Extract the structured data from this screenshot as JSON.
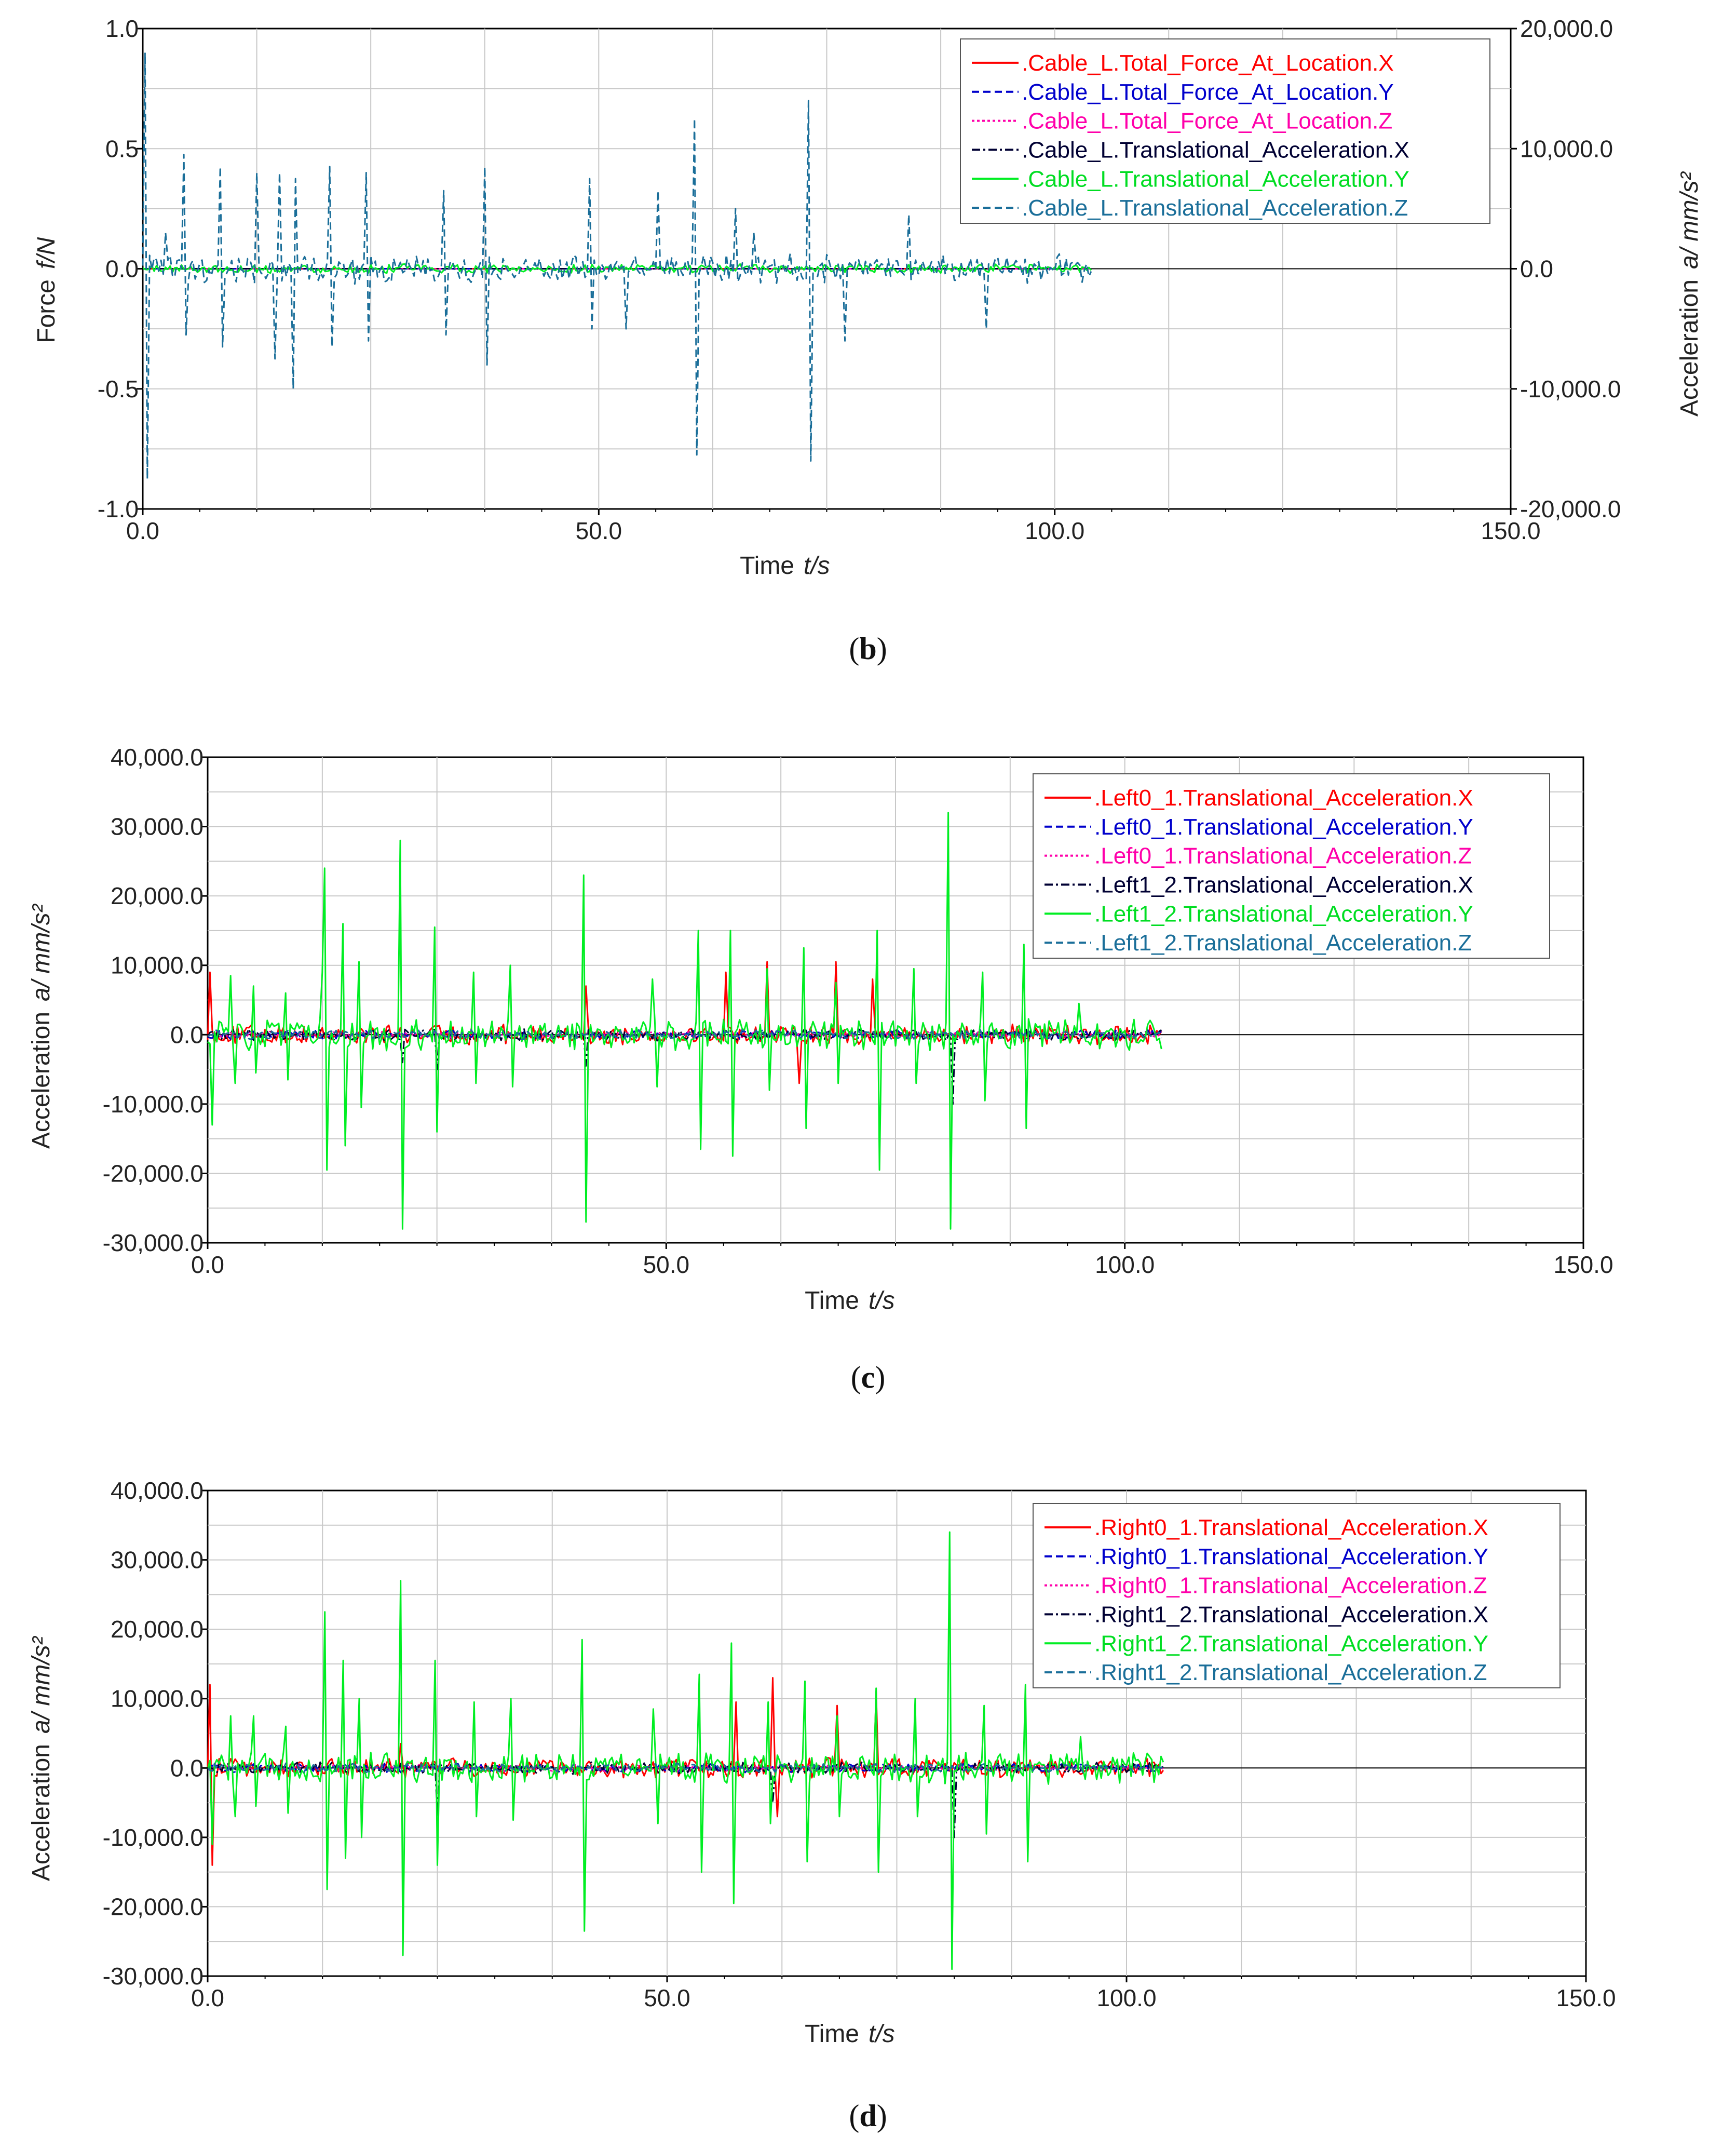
{
  "chart_data": [
    {
      "type": "line",
      "panel": "b",
      "caption": "b",
      "xlabel": "Time",
      "xunit": "t/s",
      "ylabel_left": "Force",
      "yunit_left": "f/N",
      "ylabel_right": "Acceleration",
      "yunit_right": "a/ mm/s²",
      "xlim": [
        0,
        150
      ],
      "ylim_left": [
        -1.0,
        1.0
      ],
      "ylim_right": [
        -20000,
        20000
      ],
      "xticks": [
        "0.0",
        "50.0",
        "100.0",
        "150.0"
      ],
      "yticks_left": [
        "1.0",
        "0.5",
        "0.0",
        "-0.5",
        "-1.0"
      ],
      "yticks_right": [
        "20,000.0",
        "10,000.0",
        "0.0",
        "-10,000.0",
        "-20,000.0"
      ],
      "grid": true,
      "legend_position": "top-right",
      "data_end_time": 104,
      "series": [
        {
          "name": ".Cable_L.Total_Force_At_Location.X",
          "color": "#ff0000",
          "dash": "solid",
          "axis": "left",
          "noise": 0.0,
          "spikes": []
        },
        {
          "name": ".Cable_L.Total_Force_At_Location.Y",
          "color": "#0000cc",
          "dash": "dashed",
          "axis": "left",
          "noise": 0.0,
          "spikes": []
        },
        {
          "name": ".Cable_L.Total_Force_At_Location.Z",
          "color": "#ff00aa",
          "dash": "dotted",
          "axis": "left",
          "noise": 0.0,
          "spikes": []
        },
        {
          "name": ".Cable_L.Translational_Acceleration.X",
          "color": "#000033",
          "dash": "dashdot",
          "axis": "right",
          "noise": 0,
          "spikes": []
        },
        {
          "name": ".Cable_L.Translational_Acceleration.Y",
          "color": "#00ee22",
          "dash": "solid",
          "axis": "right",
          "noise": 400,
          "spikes": []
        },
        {
          "name": ".Cable_L.Translational_Acceleration.Z",
          "color": "#1a6e99",
          "dash": "dashed",
          "axis": "right",
          "noise": 1300,
          "spikes": [
            [
              0.3,
              18000
            ],
            [
              0.6,
              -17500
            ],
            [
              2.5,
              3000
            ],
            [
              4.5,
              9500
            ],
            [
              4.8,
              -5500
            ],
            [
              8.5,
              8500
            ],
            [
              8.8,
              -6500
            ],
            [
              12.5,
              8000
            ],
            [
              14.5,
              -7500
            ],
            [
              15,
              8000
            ],
            [
              16.5,
              -10000
            ],
            [
              16.8,
              7500
            ],
            [
              20.5,
              8500
            ],
            [
              20.8,
              -6500
            ],
            [
              24.5,
              8000
            ],
            [
              24.8,
              -6000
            ],
            [
              33,
              6500
            ],
            [
              33.3,
              -5500
            ],
            [
              37.5,
              8500
            ],
            [
              37.8,
              -8000
            ],
            [
              49,
              7500
            ],
            [
              49.3,
              -5000
            ],
            [
              53,
              -5000
            ],
            [
              56.5,
              6500
            ],
            [
              60.5,
              12500
            ],
            [
              60.8,
              -15500
            ],
            [
              65,
              5000
            ],
            [
              67,
              3000
            ],
            [
              73,
              14000
            ],
            [
              73.3,
              -16000
            ],
            [
              77,
              -6000
            ],
            [
              84,
              4500
            ],
            [
              92.5,
              -5000
            ]
          ]
        }
      ]
    },
    {
      "type": "line",
      "panel": "c",
      "caption": "c",
      "xlabel": "Time",
      "xunit": "t/s",
      "ylabel_left": "Acceleration",
      "yunit_left": "a/ mm/s²",
      "xlim": [
        0,
        150
      ],
      "ylim_left": [
        -30000,
        40000
      ],
      "xticks": [
        "0.0",
        "50.0",
        "100.0",
        "150.0"
      ],
      "yticks_left": [
        "40,000.0",
        "30,000.0",
        "20,000.0",
        "10,000.0",
        "0.0",
        "-10,000.0",
        "-20,000.0",
        "-30,000.0"
      ],
      "grid": true,
      "legend_position": "top-right",
      "data_end_time": 104,
      "series": [
        {
          "name": ".Left0_1.Translational_Acceleration.X",
          "color": "#ff0000",
          "dash": "solid",
          "axis": "left",
          "noise": 1500,
          "spikes": [
            [
              0.2,
              9000
            ],
            [
              41.2,
              7000
            ],
            [
              56.5,
              9000
            ],
            [
              61,
              10500
            ],
            [
              64.5,
              -7000
            ],
            [
              68.5,
              10500
            ],
            [
              72.5,
              8000
            ]
          ]
        },
        {
          "name": ".Left0_1.Translational_Acceleration.Y",
          "color": "#0000cc",
          "dash": "dashed",
          "axis": "left",
          "noise": 700,
          "spikes": []
        },
        {
          "name": ".Left0_1.Translational_Acceleration.Z",
          "color": "#ff00aa",
          "dash": "dotted",
          "axis": "left",
          "noise": 500,
          "spikes": []
        },
        {
          "name": ".Left1_2.Translational_Acceleration.X",
          "color": "#000033",
          "dash": "dashdot",
          "axis": "left",
          "noise": 900,
          "spikes": [
            [
              21.3,
              -4000
            ],
            [
              25,
              -5000
            ],
            [
              41.2,
              -4500
            ],
            [
              81.3,
              -10000
            ]
          ]
        },
        {
          "name": ".Left1_2.Translational_Acceleration.Y",
          "color": "#00ee22",
          "dash": "solid",
          "axis": "left",
          "noise": 2400,
          "spikes": [
            [
              0.4,
              14000
            ],
            [
              0.5,
              -13000
            ],
            [
              2.5,
              8500
            ],
            [
              3,
              -7000
            ],
            [
              5,
              7000
            ],
            [
              5.3,
              -5500
            ],
            [
              8.5,
              6000
            ],
            [
              8.8,
              -6500
            ],
            [
              12.5,
              9000
            ],
            [
              12.8,
              -7500
            ],
            [
              12.8,
              24000
            ],
            [
              13,
              -19500
            ],
            [
              14.8,
              16000
            ],
            [
              15.1,
              -16000
            ],
            [
              16.5,
              10500
            ],
            [
              16.8,
              -10500
            ],
            [
              21,
              28000
            ],
            [
              21.3,
              -28000
            ],
            [
              24.8,
              15500
            ],
            [
              25.1,
              -14000
            ],
            [
              29,
              9000
            ],
            [
              29.3,
              -7000
            ],
            [
              33,
              10000
            ],
            [
              33.3,
              -7500
            ],
            [
              41,
              23000
            ],
            [
              41.3,
              -27000
            ],
            [
              48.5,
              8000
            ],
            [
              49,
              -7500
            ],
            [
              53.5,
              15000
            ],
            [
              53.8,
              -16500
            ],
            [
              57,
              15000
            ],
            [
              57.3,
              -17500
            ],
            [
              61,
              9500
            ],
            [
              61.3,
              -8000
            ],
            [
              65,
              12500
            ],
            [
              65.3,
              -13500
            ],
            [
              68.5,
              7500
            ],
            [
              68.8,
              -7000
            ],
            [
              73,
              15000
            ],
            [
              73.3,
              -19500
            ],
            [
              77,
              9500
            ],
            [
              77.3,
              -7000
            ],
            [
              80.8,
              32000
            ],
            [
              81.1,
              -28000
            ],
            [
              84.5,
              9000
            ],
            [
              84.8,
              -9500
            ],
            [
              89,
              13000
            ],
            [
              89.3,
              -13500
            ],
            [
              95,
              4500
            ]
          ]
        },
        {
          "name": ".Left1_2.Translational_Acceleration.Z",
          "color": "#1a6e99",
          "dash": "dashed",
          "axis": "left",
          "noise": 700,
          "spikes": []
        }
      ]
    },
    {
      "type": "line",
      "panel": "d",
      "caption": "d",
      "xlabel": "Time",
      "xunit": "t/s",
      "ylabel_left": "Acceleration",
      "yunit_left": "a/ mm/s²",
      "xlim": [
        0,
        150
      ],
      "ylim_left": [
        -30000,
        40000
      ],
      "xticks": [
        "0.0",
        "50.0",
        "100.0",
        "150.0"
      ],
      "yticks_left": [
        "40,000.0",
        "30,000.0",
        "20,000.0",
        "10,000.0",
        "0.0",
        "-10,000.0",
        "-20,000.0",
        "-30,000.0"
      ],
      "grid": true,
      "legend_position": "top-right",
      "data_end_time": 104,
      "series": [
        {
          "name": ".Right0_1.Translational_Acceleration.X",
          "color": "#ff0000",
          "dash": "solid",
          "axis": "left",
          "noise": 1500,
          "spikes": [
            [
              0.3,
              12000
            ],
            [
              0.5,
              -14000
            ],
            [
              21,
              3500
            ],
            [
              57.5,
              9500
            ],
            [
              61.5,
              13000
            ],
            [
              62,
              -7000
            ],
            [
              68.5,
              9000
            ],
            [
              72.8,
              11000
            ]
          ]
        },
        {
          "name": ".Right0_1.Translational_Acceleration.Y",
          "color": "#0000cc",
          "dash": "dashed",
          "axis": "left",
          "noise": 700,
          "spikes": []
        },
        {
          "name": ".Right0_1.Translational_Acceleration.Z",
          "color": "#ff00aa",
          "dash": "dotted",
          "axis": "left",
          "noise": 500,
          "spikes": []
        },
        {
          "name": ".Right1_2.Translational_Acceleration.X",
          "color": "#000033",
          "dash": "dashdot",
          "axis": "left",
          "noise": 900,
          "spikes": [
            [
              25,
              -7000
            ],
            [
              61.5,
              -5000
            ],
            [
              81.3,
              -10000
            ]
          ]
        },
        {
          "name": ".Right1_2.Translational_Acceleration.Y",
          "color": "#00ee22",
          "dash": "solid",
          "axis": "left",
          "noise": 2400,
          "spikes": [
            [
              0.4,
              11000
            ],
            [
              0.6,
              -11000
            ],
            [
              2.5,
              7500
            ],
            [
              3,
              -7000
            ],
            [
              5,
              7500
            ],
            [
              5.3,
              -5500
            ],
            [
              8.5,
              6000
            ],
            [
              8.8,
              -6500
            ],
            [
              12.8,
              22500
            ],
            [
              13.1,
              -17500
            ],
            [
              14.8,
              15500
            ],
            [
              15.1,
              -13000
            ],
            [
              16.5,
              10000
            ],
            [
              16.8,
              -10000
            ],
            [
              21,
              27000
            ],
            [
              21.3,
              -27000
            ],
            [
              24.8,
              15500
            ],
            [
              25.1,
              -14000
            ],
            [
              29,
              9500
            ],
            [
              29.3,
              -7000
            ],
            [
              33,
              10000
            ],
            [
              33.3,
              -7500
            ],
            [
              40.8,
              18500
            ],
            [
              41.1,
              -23500
            ],
            [
              48.5,
              8500
            ],
            [
              49,
              -8000
            ],
            [
              53.5,
              13500
            ],
            [
              53.8,
              -15000
            ],
            [
              57,
              18000
            ],
            [
              57.3,
              -19500
            ],
            [
              61,
              9500
            ],
            [
              61.3,
              -8000
            ],
            [
              65,
              12500
            ],
            [
              65.3,
              -13500
            ],
            [
              68.5,
              7500
            ],
            [
              68.8,
              -7000
            ],
            [
              72.8,
              11500
            ],
            [
              73.1,
              -15000
            ],
            [
              77,
              10000
            ],
            [
              77.3,
              -7000
            ],
            [
              80.8,
              34000
            ],
            [
              81.1,
              -29000
            ],
            [
              84.5,
              9000
            ],
            [
              84.8,
              -9500
            ],
            [
              89,
              12000
            ],
            [
              89.3,
              -13500
            ],
            [
              95,
              4500
            ]
          ]
        },
        {
          "name": ".Right1_2.Translational_Acceleration.Z",
          "color": "#1a6e99",
          "dash": "dashed",
          "axis": "left",
          "noise": 700,
          "spikes": []
        }
      ]
    }
  ]
}
